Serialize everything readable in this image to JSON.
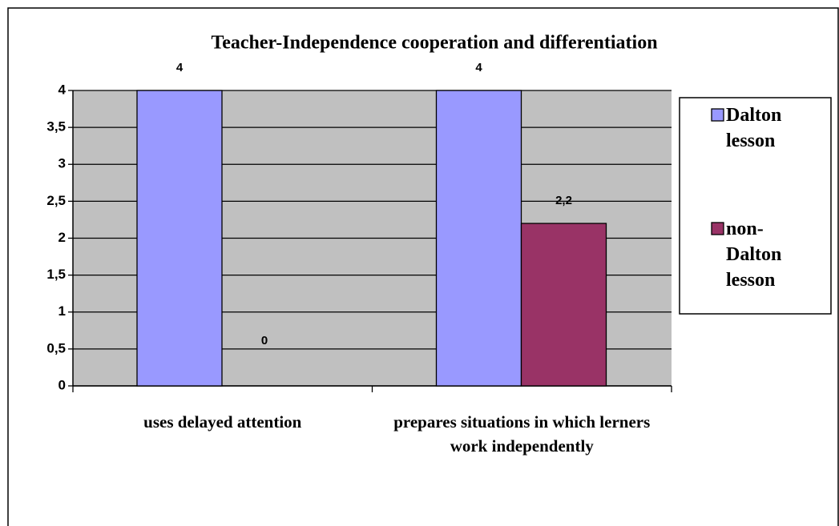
{
  "chart_data": {
    "type": "bar",
    "title": "Teacher-Independence cooperation and differentiation",
    "categories": [
      "uses delayed attention",
      "prepares situations in which lerners work independently"
    ],
    "series": [
      {
        "name": "Dalton lesson",
        "color": "#9999ff",
        "values": [
          4,
          4
        ],
        "value_labels": [
          "4",
          "4"
        ]
      },
      {
        "name": "non-Dalton lesson",
        "color": "#993366",
        "values": [
          0,
          2.2
        ],
        "value_labels": [
          "0",
          "2,2"
        ]
      }
    ],
    "ylim": [
      0,
      4
    ],
    "yticks": [
      0,
      {
        "value": 0.5,
        "label": "0,5"
      },
      1,
      {
        "value": 1.5,
        "label": "1,5"
      },
      2,
      {
        "value": 2.5,
        "label": "2,5"
      },
      3,
      {
        "value": 3.5,
        "label": "3,5"
      },
      4
    ],
    "grid": true,
    "legend": "right"
  }
}
